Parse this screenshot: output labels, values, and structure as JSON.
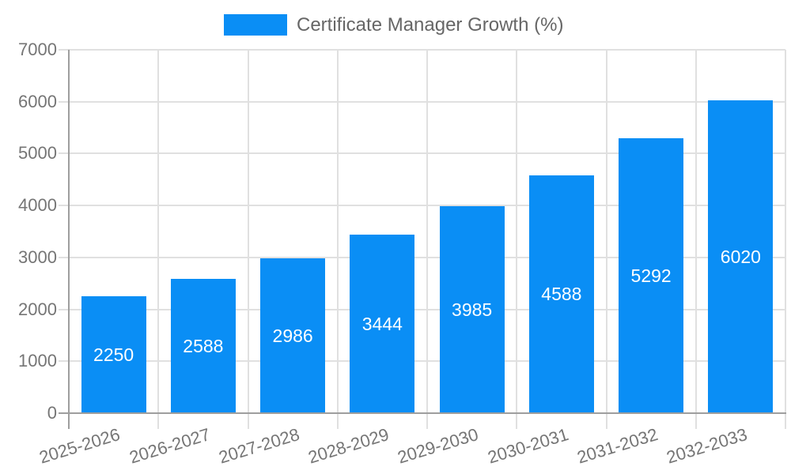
{
  "chart_data": {
    "type": "bar",
    "title": "Certificate Manager Growth (%)",
    "categories": [
      "2025-2026",
      "2026-2027",
      "2027-2028",
      "2028-2029",
      "2029-2030",
      "2030-2031",
      "2031-2032",
      "2032-2033"
    ],
    "values": [
      2250,
      2588,
      2986,
      3444,
      3985,
      4588,
      5292,
      6020
    ],
    "series": [
      {
        "name": "Certificate Manager Growth (%)",
        "values": [
          2250,
          2588,
          2986,
          3444,
          3985,
          4588,
          5292,
          6020
        ]
      }
    ],
    "xlabel": "",
    "ylabel": "",
    "ylim": [
      0,
      7000
    ],
    "yticks": [
      0,
      1000,
      2000,
      3000,
      4000,
      5000,
      6000,
      7000
    ],
    "ytick_labels": [
      "0",
      "1000",
      "2000",
      "3000",
      "4000",
      "5000",
      "6000",
      "7000"
    ],
    "grid": true,
    "legend_position": "top",
    "value_labels_position": "inside-center",
    "x_label_rotation_deg": -17,
    "colors": {
      "bar": "#0a8ef5",
      "grid": "#e0e0e0",
      "axis": "#9e9e9e",
      "tick_text": "#757575",
      "legend_text": "#666666",
      "value_label_text": "#ffffff",
      "background": "#ffffff"
    }
  }
}
